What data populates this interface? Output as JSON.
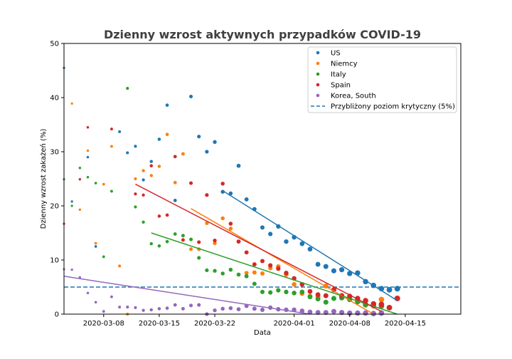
{
  "chart_data": {
    "type": "scatter",
    "title": "Dzienny wzrost aktywnych przypadków COVID-19",
    "xlabel": "Data",
    "ylabel": "Dzienny wzrost zakażeń (%)",
    "xlim": [
      "2020-03-03",
      "2020-04-22"
    ],
    "ylim": [
      0,
      50
    ],
    "x_ticks": [
      "2020-03-08",
      "2020-03-15",
      "2020-03-22",
      "2020-04-01",
      "2020-04-08",
      "2020-04-15"
    ],
    "y_ticks": [
      0,
      10,
      20,
      30,
      40,
      50
    ],
    "legend_position": "upper right",
    "threshold": {
      "label": "Przybliżony poziom krytyczny (5%)",
      "value": 5,
      "color": "#1f77b4",
      "style": "dashed"
    },
    "series": [
      {
        "name": "US",
        "color": "#1f77b4",
        "points": [
          {
            "x": "2020-03-03",
            "y": 45.5
          },
          {
            "x": "2020-03-04",
            "y": 20.8
          },
          {
            "x": "2020-03-05",
            "y": 27.0
          },
          {
            "x": "2020-03-06",
            "y": 29.0
          },
          {
            "x": "2020-03-07",
            "y": 12.5
          },
          {
            "x": "2020-03-10",
            "y": 33.7
          },
          {
            "x": "2020-03-11",
            "y": 29.8
          },
          {
            "x": "2020-03-12",
            "y": 31.0
          },
          {
            "x": "2020-03-13",
            "y": 24.8
          },
          {
            "x": "2020-03-14",
            "y": 28.2
          },
          {
            "x": "2020-03-15",
            "y": 32.3
          },
          {
            "x": "2020-03-16",
            "y": 38.6
          },
          {
            "x": "2020-03-17",
            "y": 21.0
          },
          {
            "x": "2020-03-19",
            "y": 40.2
          },
          {
            "x": "2020-03-20",
            "y": 32.8
          },
          {
            "x": "2020-03-21",
            "y": 30.0
          },
          {
            "x": "2020-03-22",
            "y": 31.8
          },
          {
            "x": "2020-03-23",
            "y": 22.6
          },
          {
            "x": "2020-03-24",
            "y": 22.3
          },
          {
            "x": "2020-03-25",
            "y": 27.4
          },
          {
            "x": "2020-03-26",
            "y": 21.2
          },
          {
            "x": "2020-03-27",
            "y": 19.4
          },
          {
            "x": "2020-03-28",
            "y": 16.0
          },
          {
            "x": "2020-03-29",
            "y": 14.8
          },
          {
            "x": "2020-03-30",
            "y": 16.2
          },
          {
            "x": "2020-03-31",
            "y": 13.4
          },
          {
            "x": "2020-04-01",
            "y": 14.2
          },
          {
            "x": "2020-04-02",
            "y": 13.0
          },
          {
            "x": "2020-04-03",
            "y": 12.0
          },
          {
            "x": "2020-04-04",
            "y": 9.2
          },
          {
            "x": "2020-04-05",
            "y": 8.8
          },
          {
            "x": "2020-04-06",
            "y": 8.0
          },
          {
            "x": "2020-04-07",
            "y": 8.2
          },
          {
            "x": "2020-04-08",
            "y": 7.5
          },
          {
            "x": "2020-04-09",
            "y": 7.6
          },
          {
            "x": "2020-04-10",
            "y": 6.0
          },
          {
            "x": "2020-04-11",
            "y": 5.3
          },
          {
            "x": "2020-04-12",
            "y": 4.7
          },
          {
            "x": "2020-04-13",
            "y": 4.5
          },
          {
            "x": "2020-04-14",
            "y": 4.7
          }
        ],
        "trend": {
          "x": [
            "2020-03-23",
            "2020-04-14"
          ],
          "y": [
            22.8,
            2.5
          ]
        }
      },
      {
        "name": "Niemcy",
        "color": "#ff7f0e",
        "points": [
          {
            "x": "2020-03-04",
            "y": 38.9
          },
          {
            "x": "2020-03-05",
            "y": 19.3
          },
          {
            "x": "2020-03-06",
            "y": 30.2
          },
          {
            "x": "2020-03-07",
            "y": 13.1
          },
          {
            "x": "2020-03-08",
            "y": 24.0
          },
          {
            "x": "2020-03-09",
            "y": 31.0
          },
          {
            "x": "2020-03-10",
            "y": 8.9
          },
          {
            "x": "2020-03-11",
            "y": 0.0
          },
          {
            "x": "2020-03-12",
            "y": 25.0
          },
          {
            "x": "2020-03-13",
            "y": 26.5
          },
          {
            "x": "2020-03-14",
            "y": 25.6
          },
          {
            "x": "2020-03-15",
            "y": 27.3
          },
          {
            "x": "2020-03-16",
            "y": 33.2
          },
          {
            "x": "2020-03-17",
            "y": 24.3
          },
          {
            "x": "2020-03-18",
            "y": 29.6
          },
          {
            "x": "2020-03-19",
            "y": 12.0
          },
          {
            "x": "2020-03-20",
            "y": 12.0
          },
          {
            "x": "2020-03-21",
            "y": 16.8
          },
          {
            "x": "2020-03-22",
            "y": 13.1
          },
          {
            "x": "2020-03-23",
            "y": 17.7
          },
          {
            "x": "2020-03-24",
            "y": 15.8
          },
          {
            "x": "2020-03-25",
            "y": 13.4
          },
          {
            "x": "2020-03-26",
            "y": 7.6
          },
          {
            "x": "2020-03-27",
            "y": 7.7
          },
          {
            "x": "2020-03-28",
            "y": 7.5
          },
          {
            "x": "2020-03-29",
            "y": 8.5
          },
          {
            "x": "2020-03-30",
            "y": 8.8
          },
          {
            "x": "2020-03-31",
            "y": 7.3
          },
          {
            "x": "2020-04-01",
            "y": 5.5
          },
          {
            "x": "2020-04-02",
            "y": 3.8
          },
          {
            "x": "2020-04-03",
            "y": 3.3
          },
          {
            "x": "2020-04-04",
            "y": 3.2
          },
          {
            "x": "2020-04-05",
            "y": 5.2
          },
          {
            "x": "2020-04-06",
            "y": 4.5
          },
          {
            "x": "2020-04-07",
            "y": 3.4
          },
          {
            "x": "2020-04-08",
            "y": 2.8
          },
          {
            "x": "2020-04-09",
            "y": 2.3
          },
          {
            "x": "2020-04-10",
            "y": 1.7
          },
          {
            "x": "2020-04-11",
            "y": 1.5
          },
          {
            "x": "2020-04-12",
            "y": 2.7
          }
        ],
        "trend": {
          "x": [
            "2020-03-19",
            "2020-04-11"
          ],
          "y": [
            19.5,
            0.0
          ]
        }
      },
      {
        "name": "Italy",
        "color": "#2ca02c",
        "points": [
          {
            "x": "2020-03-03",
            "y": 24.9
          },
          {
            "x": "2020-03-04",
            "y": 20.0
          },
          {
            "x": "2020-03-05",
            "y": 27.0
          },
          {
            "x": "2020-03-06",
            "y": 25.3
          },
          {
            "x": "2020-03-07",
            "y": 24.2
          },
          {
            "x": "2020-03-08",
            "y": 10.6
          },
          {
            "x": "2020-03-09",
            "y": 22.7
          },
          {
            "x": "2020-03-11",
            "y": 41.7
          },
          {
            "x": "2020-03-12",
            "y": 19.8
          },
          {
            "x": "2020-03-13",
            "y": 17.0
          },
          {
            "x": "2020-03-14",
            "y": 13.0
          },
          {
            "x": "2020-03-15",
            "y": 12.6
          },
          {
            "x": "2020-03-16",
            "y": 13.4
          },
          {
            "x": "2020-03-17",
            "y": 14.8
          },
          {
            "x": "2020-03-18",
            "y": 14.5
          },
          {
            "x": "2020-03-19",
            "y": 13.8
          },
          {
            "x": "2020-03-20",
            "y": 10.4
          },
          {
            "x": "2020-03-21",
            "y": 8.1
          },
          {
            "x": "2020-03-22",
            "y": 8.0
          },
          {
            "x": "2020-03-23",
            "y": 7.5
          },
          {
            "x": "2020-03-24",
            "y": 8.2
          },
          {
            "x": "2020-03-25",
            "y": 7.3
          },
          {
            "x": "2020-03-26",
            "y": 7.0
          },
          {
            "x": "2020-03-27",
            "y": 5.6
          },
          {
            "x": "2020-03-28",
            "y": 4.1
          },
          {
            "x": "2020-03-29",
            "y": 4.0
          },
          {
            "x": "2020-03-30",
            "y": 4.4
          },
          {
            "x": "2020-03-31",
            "y": 4.1
          },
          {
            "x": "2020-04-01",
            "y": 3.9
          },
          {
            "x": "2020-04-02",
            "y": 4.1
          },
          {
            "x": "2020-04-03",
            "y": 3.2
          },
          {
            "x": "2020-04-04",
            "y": 2.8
          },
          {
            "x": "2020-04-05",
            "y": 2.2
          },
          {
            "x": "2020-04-06",
            "y": 2.9
          },
          {
            "x": "2020-04-07",
            "y": 3.0
          },
          {
            "x": "2020-04-08",
            "y": 2.7
          },
          {
            "x": "2020-04-09",
            "y": 2.3
          },
          {
            "x": "2020-04-10",
            "y": 1.8
          },
          {
            "x": "2020-04-11",
            "y": 1.8
          },
          {
            "x": "2020-04-12",
            "y": 1.5
          }
        ],
        "trend": {
          "x": [
            "2020-03-14",
            "2020-04-14"
          ],
          "y": [
            15.0,
            0.0
          ]
        }
      },
      {
        "name": "Spain",
        "color": "#d62728",
        "points": [
          {
            "x": "2020-03-03",
            "y": 16.7
          },
          {
            "x": "2020-03-05",
            "y": 24.9
          },
          {
            "x": "2020-03-06",
            "y": 34.5
          },
          {
            "x": "2020-03-09",
            "y": 34.2
          },
          {
            "x": "2020-03-12",
            "y": 22.2
          },
          {
            "x": "2020-03-13",
            "y": 22.0
          },
          {
            "x": "2020-03-14",
            "y": 27.4
          },
          {
            "x": "2020-03-15",
            "y": 18.1
          },
          {
            "x": "2020-03-16",
            "y": 18.3
          },
          {
            "x": "2020-03-17",
            "y": 29.1
          },
          {
            "x": "2020-03-18",
            "y": 13.7
          },
          {
            "x": "2020-03-19",
            "y": 24.2
          },
          {
            "x": "2020-03-20",
            "y": 13.3
          },
          {
            "x": "2020-03-21",
            "y": 22.0
          },
          {
            "x": "2020-03-22",
            "y": 13.6
          },
          {
            "x": "2020-03-23",
            "y": 24.1
          },
          {
            "x": "2020-03-24",
            "y": 16.7
          },
          {
            "x": "2020-03-25",
            "y": 13.4
          },
          {
            "x": "2020-03-26",
            "y": 11.4
          },
          {
            "x": "2020-03-27",
            "y": 9.2
          },
          {
            "x": "2020-03-28",
            "y": 9.8
          },
          {
            "x": "2020-03-29",
            "y": 9.0
          },
          {
            "x": "2020-03-30",
            "y": 8.4
          },
          {
            "x": "2020-03-31",
            "y": 7.6
          },
          {
            "x": "2020-04-01",
            "y": 6.6
          },
          {
            "x": "2020-04-02",
            "y": 5.5
          },
          {
            "x": "2020-04-03",
            "y": 4.2
          },
          {
            "x": "2020-04-04",
            "y": 3.6
          },
          {
            "x": "2020-04-05",
            "y": 3.4
          },
          {
            "x": "2020-04-06",
            "y": 4.5
          },
          {
            "x": "2020-04-07",
            "y": 3.4
          },
          {
            "x": "2020-04-08",
            "y": 3.3
          },
          {
            "x": "2020-04-09",
            "y": 2.9
          },
          {
            "x": "2020-04-10",
            "y": 2.5
          },
          {
            "x": "2020-04-11",
            "y": 1.9
          },
          {
            "x": "2020-04-12",
            "y": 1.8
          },
          {
            "x": "2020-04-13",
            "y": 1.2
          },
          {
            "x": "2020-04-14",
            "y": 2.9
          }
        ],
        "trend": {
          "x": [
            "2020-03-12",
            "2020-04-12"
          ],
          "y": [
            24.0,
            0.5
          ]
        }
      },
      {
        "name": "Korea, South",
        "color": "#9467bd",
        "points": [
          {
            "x": "2020-03-03",
            "y": 8.3
          },
          {
            "x": "2020-03-04",
            "y": 8.2
          },
          {
            "x": "2020-03-05",
            "y": 6.8
          },
          {
            "x": "2020-03-06",
            "y": 3.9
          },
          {
            "x": "2020-03-07",
            "y": 2.2
          },
          {
            "x": "2020-03-08",
            "y": 0.5
          },
          {
            "x": "2020-03-09",
            "y": 3.2
          },
          {
            "x": "2020-03-10",
            "y": 1.3
          },
          {
            "x": "2020-03-11",
            "y": 1.3
          },
          {
            "x": "2020-03-12",
            "y": 1.2
          },
          {
            "x": "2020-03-13",
            "y": 0.7
          },
          {
            "x": "2020-03-14",
            "y": 0.8
          },
          {
            "x": "2020-03-15",
            "y": 1.0
          },
          {
            "x": "2020-03-16",
            "y": 1.1
          },
          {
            "x": "2020-03-17",
            "y": 1.7
          },
          {
            "x": "2020-03-18",
            "y": 1.0
          },
          {
            "x": "2020-03-19",
            "y": 1.6
          },
          {
            "x": "2020-03-20",
            "y": 1.7
          },
          {
            "x": "2020-03-21",
            "y": 0.0
          },
          {
            "x": "2020-03-22",
            "y": 0.7
          },
          {
            "x": "2020-03-23",
            "y": 1.0
          },
          {
            "x": "2020-03-24",
            "y": 1.1
          },
          {
            "x": "2020-03-25",
            "y": 0.9
          },
          {
            "x": "2020-03-26",
            "y": 1.5
          },
          {
            "x": "2020-03-27",
            "y": 1.0
          },
          {
            "x": "2020-03-28",
            "y": 0.8
          },
          {
            "x": "2020-03-29",
            "y": 1.2
          },
          {
            "x": "2020-03-30",
            "y": 0.9
          },
          {
            "x": "2020-03-31",
            "y": 0.8
          },
          {
            "x": "2020-04-01",
            "y": 0.8
          },
          {
            "x": "2020-04-02",
            "y": 0.6
          },
          {
            "x": "2020-04-03",
            "y": 0.4
          },
          {
            "x": "2020-04-04",
            "y": 0.3
          },
          {
            "x": "2020-04-05",
            "y": 0.3
          },
          {
            "x": "2020-04-06",
            "y": 0.5
          },
          {
            "x": "2020-04-07",
            "y": 0.3
          },
          {
            "x": "2020-04-08",
            "y": 0.2
          },
          {
            "x": "2020-04-09",
            "y": 0.2
          },
          {
            "x": "2020-04-10",
            "y": 0.2
          },
          {
            "x": "2020-04-11",
            "y": 0.1
          },
          {
            "x": "2020-04-12",
            "y": 0.2
          }
        ],
        "trend": {
          "x": [
            "2020-03-03",
            "2020-04-03"
          ],
          "y": [
            7.0,
            0.0
          ]
        }
      }
    ]
  }
}
